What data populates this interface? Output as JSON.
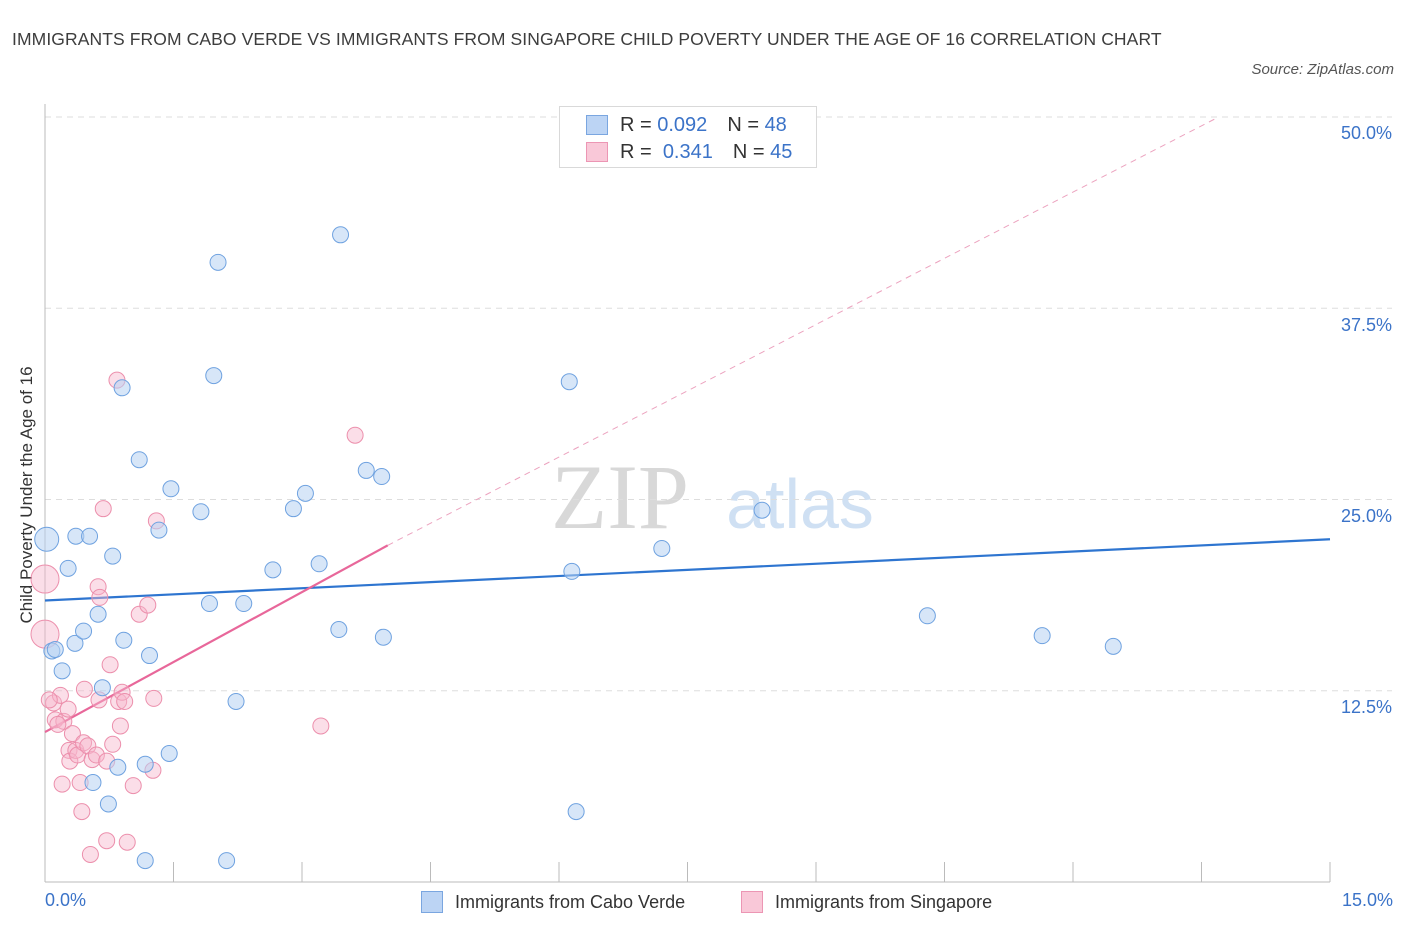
{
  "title": "IMMIGRANTS FROM CABO VERDE VS IMMIGRANTS FROM SINGAPORE CHILD POVERTY UNDER THE AGE OF 16 CORRELATION CHART",
  "source": "Source: ZipAtlas.com",
  "watermark": {
    "zip": "ZIP",
    "atlas": "atlas"
  },
  "legend": {
    "r_label": "R =",
    "n_label": "N =",
    "rows": [
      {
        "r": "0.092",
        "n": "48"
      },
      {
        "r": "0.341",
        "n": "45"
      }
    ]
  },
  "chart_data": {
    "type": "scatter",
    "title": "IMMIGRANTS FROM CABO VERDE VS IMMIGRANTS FROM SINGAPORE CHILD POVERTY UNDER THE AGE OF 16 CORRELATION CHART",
    "xlabel": "",
    "ylabel": "Child Poverty Under the Age of 16",
    "xlim": [
      0,
      15
    ],
    "ylim": [
      0,
      50
    ],
    "x_tick_labels": [
      "0.0%",
      "15.0%"
    ],
    "y_tick_labels": [
      "12.5%",
      "25.0%",
      "37.5%",
      "50.0%"
    ],
    "y_ticks": [
      12.5,
      25,
      37.5,
      50
    ],
    "grid": true,
    "legend_position": "top-center",
    "colors": {
      "cabo": "#6fa2e0",
      "singapore": "#ec8fac",
      "cabo_line": "#2e75d0",
      "singapore_line": "#e8679a"
    },
    "series": [
      {
        "name": "Immigrants from Cabo Verde",
        "r": 0.092,
        "n": 48,
        "trend": {
          "x": [
            0,
            15
          ],
          "y": [
            18.4,
            22.4
          ]
        },
        "points": [
          [
            0.02,
            22.4
          ],
          [
            0.08,
            15.1
          ],
          [
            0.2,
            13.8
          ],
          [
            0.27,
            20.5
          ],
          [
            0.35,
            15.6
          ],
          [
            0.36,
            22.6
          ],
          [
            0.45,
            16.4
          ],
          [
            0.52,
            22.6
          ],
          [
            0.62,
            17.5
          ],
          [
            0.67,
            12.7
          ],
          [
            0.79,
            21.3
          ],
          [
            0.85,
            7.5
          ],
          [
            0.9,
            32.3
          ],
          [
            0.92,
            15.8
          ],
          [
            1.1,
            27.6
          ],
          [
            1.17,
            7.7
          ],
          [
            1.22,
            14.8
          ],
          [
            1.33,
            23.0
          ],
          [
            1.45,
            8.4
          ],
          [
            1.47,
            25.7
          ],
          [
            1.82,
            24.2
          ],
          [
            1.92,
            18.2
          ],
          [
            1.97,
            33.1
          ],
          [
            2.02,
            40.5
          ],
          [
            2.23,
            11.8
          ],
          [
            2.32,
            18.2
          ],
          [
            2.66,
            20.4
          ],
          [
            2.9,
            24.4
          ],
          [
            3.04,
            25.4
          ],
          [
            3.2,
            20.8
          ],
          [
            3.43,
            16.5
          ],
          [
            3.45,
            42.3
          ],
          [
            3.75,
            26.9
          ],
          [
            3.93,
            26.5
          ],
          [
            3.95,
            16.0
          ],
          [
            6.12,
            32.7
          ],
          [
            6.15,
            20.3
          ],
          [
            6.2,
            4.6
          ],
          [
            7.2,
            21.8
          ],
          [
            8.37,
            24.3
          ],
          [
            10.3,
            17.4
          ],
          [
            11.64,
            16.1
          ],
          [
            12.47,
            15.4
          ],
          [
            0.12,
            15.2
          ],
          [
            0.56,
            6.5
          ],
          [
            0.74,
            5.1
          ],
          [
            1.17,
            1.4
          ],
          [
            2.12,
            1.4
          ]
        ]
      },
      {
        "name": "Immigrants from Singapore",
        "r": 0.341,
        "n": 45,
        "trend": {
          "x": [
            0,
            4.0
          ],
          "y": [
            9.8,
            22.0
          ]
        },
        "trend_extension": {
          "x": [
            4.0,
            13.7
          ],
          "y": [
            22.0,
            50.0
          ]
        },
        "points": [
          [
            0.0,
            19.8
          ],
          [
            0.0,
            16.2
          ],
          [
            0.1,
            11.7
          ],
          [
            0.12,
            10.6
          ],
          [
            0.18,
            12.2
          ],
          [
            0.2,
            6.4
          ],
          [
            0.22,
            10.5
          ],
          [
            0.27,
            11.3
          ],
          [
            0.28,
            8.6
          ],
          [
            0.29,
            7.9
          ],
          [
            0.32,
            9.7
          ],
          [
            0.36,
            8.6
          ],
          [
            0.38,
            8.3
          ],
          [
            0.41,
            6.5
          ],
          [
            0.43,
            4.6
          ],
          [
            0.45,
            9.1
          ],
          [
            0.46,
            12.6
          ],
          [
            0.5,
            8.9
          ],
          [
            0.53,
            1.8
          ],
          [
            0.55,
            8.0
          ],
          [
            0.6,
            8.3
          ],
          [
            0.62,
            19.3
          ],
          [
            0.63,
            11.9
          ],
          [
            0.64,
            18.6
          ],
          [
            0.68,
            24.4
          ],
          [
            0.72,
            2.7
          ],
          [
            0.76,
            14.2
          ],
          [
            0.79,
            9.0
          ],
          [
            0.84,
            32.8
          ],
          [
            0.86,
            11.8
          ],
          [
            0.88,
            10.2
          ],
          [
            0.9,
            12.4
          ],
          [
            0.93,
            11.8
          ],
          [
            0.96,
            2.6
          ],
          [
            1.03,
            6.3
          ],
          [
            1.1,
            17.5
          ],
          [
            1.2,
            18.1
          ],
          [
            1.26,
            7.3
          ],
          [
            1.3,
            23.6
          ],
          [
            1.27,
            12.0
          ],
          [
            3.22,
            10.2
          ],
          [
            3.62,
            29.2
          ],
          [
            0.72,
            7.9
          ],
          [
            0.15,
            10.3
          ],
          [
            0.05,
            11.9
          ]
        ]
      }
    ]
  }
}
